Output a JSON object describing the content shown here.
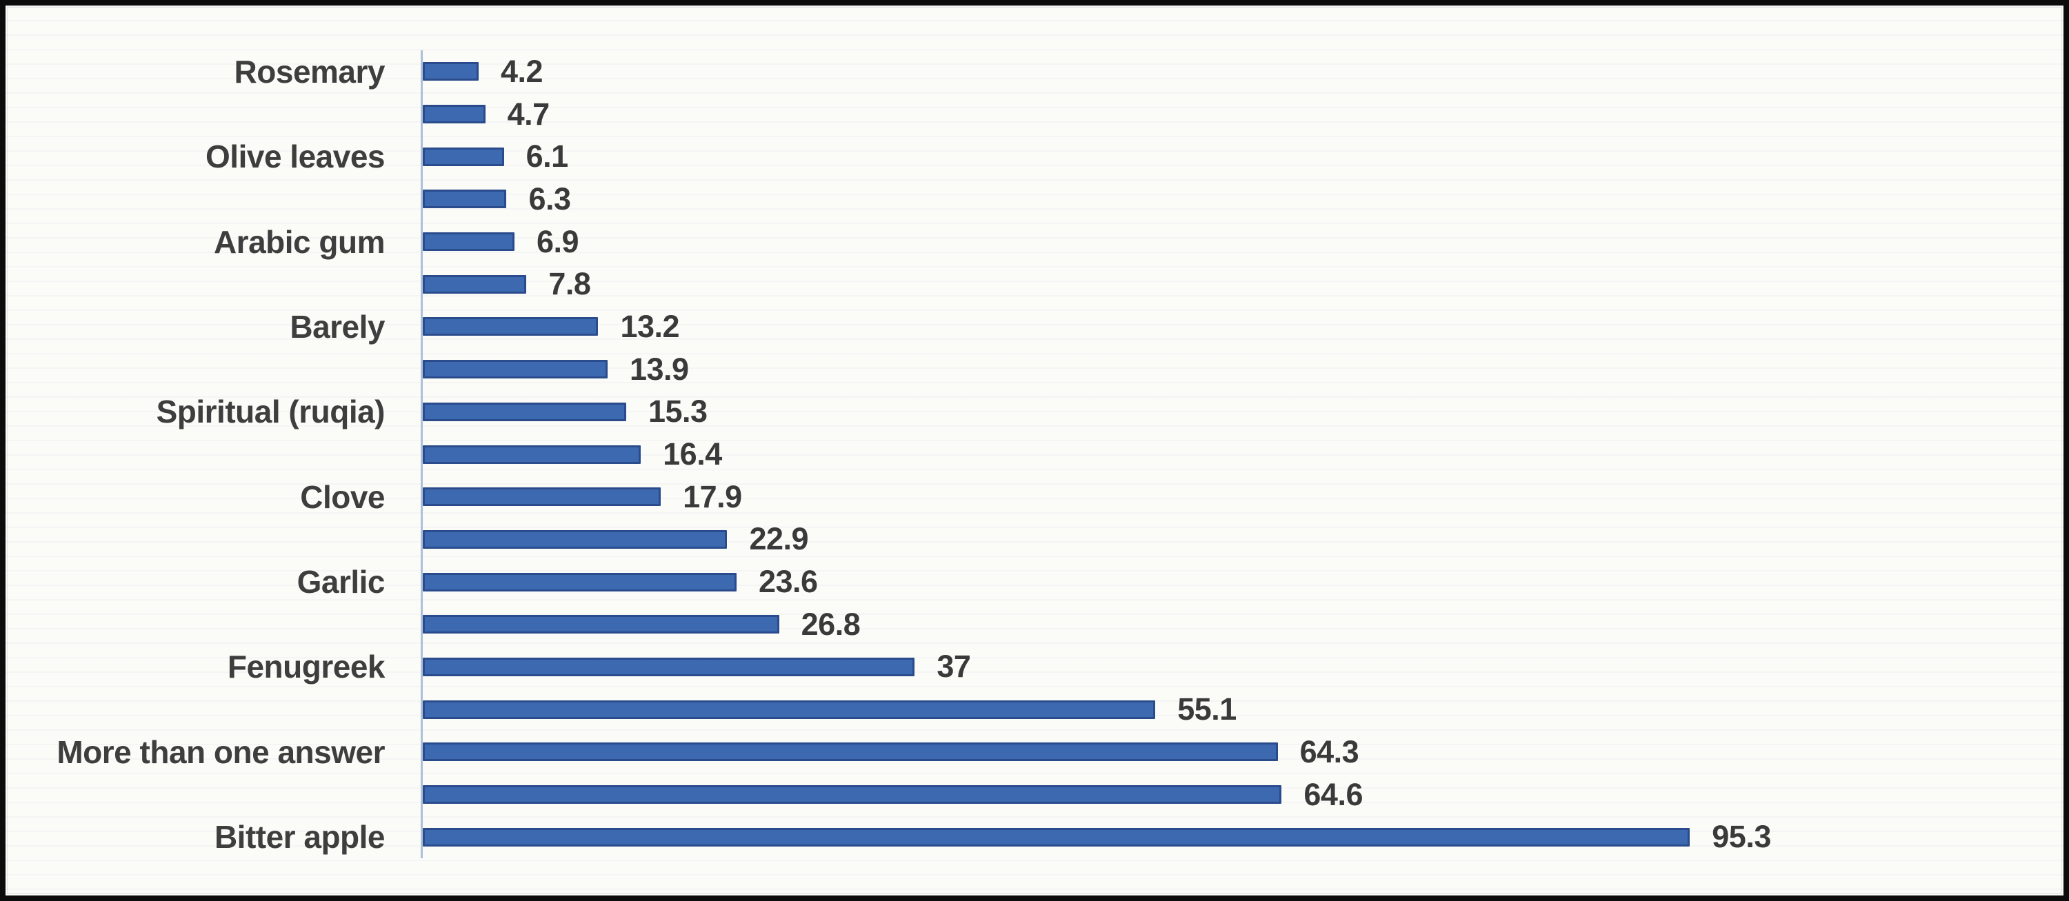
{
  "chart_data": {
    "type": "bar",
    "orientation": "horizontal",
    "title": "",
    "xlabel": "",
    "ylabel": "",
    "legend_position": "none",
    "grid": false,
    "axis_max": 123.4,
    "categories": [
      "Rosemary",
      "",
      "Olive leaves",
      "",
      "Arabic gum",
      "",
      "Barely",
      "",
      "Spiritual (ruqia)",
      "",
      "Clove",
      "",
      "Garlic",
      "",
      "Fenugreek",
      "",
      "More than one answer",
      "",
      "Bitter apple"
    ],
    "values": [
      4.2,
      4.7,
      6.1,
      6.3,
      6.9,
      7.8,
      13.2,
      13.9,
      15.3,
      16.4,
      17.9,
      22.9,
      23.6,
      26.8,
      37,
      55.1,
      64.3,
      64.6,
      95.3
    ],
    "colors": {
      "bar_fill": "#3d69b1",
      "bar_border": "#2a4c8c",
      "axis_line": "#adbfd9",
      "value_label_text": "#3a3a3a",
      "category_label_text": "#3e3e3e",
      "background": "#fbfbf8",
      "frame": "#0c0c0c"
    }
  }
}
